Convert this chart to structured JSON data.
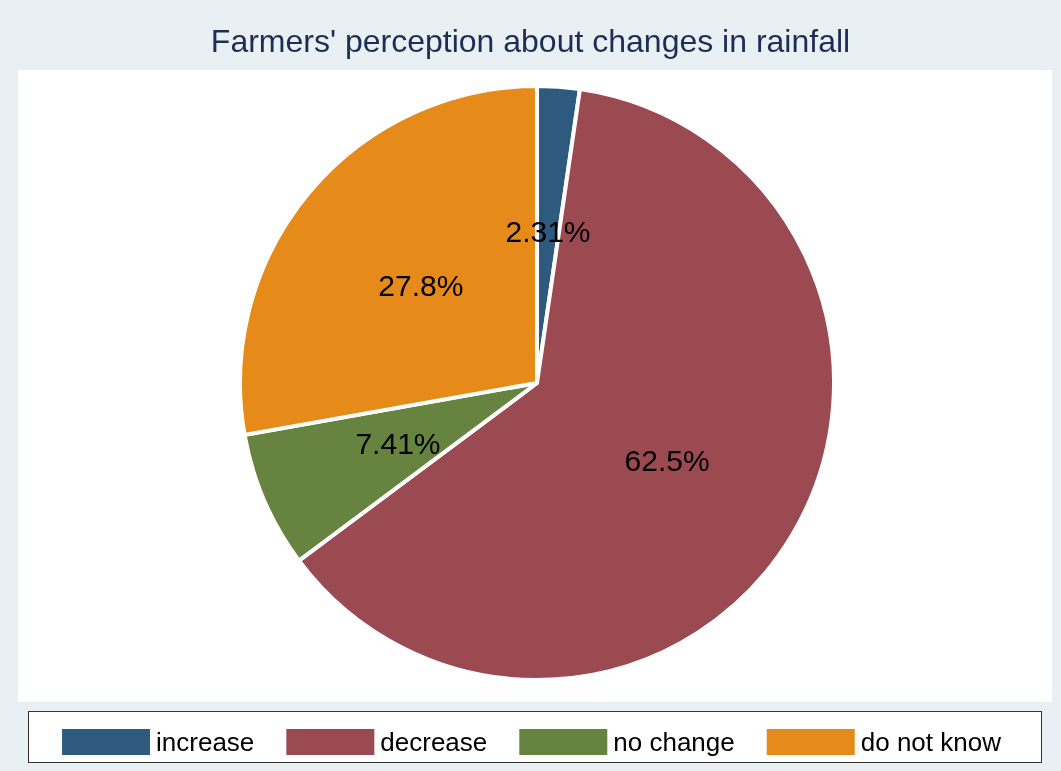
{
  "chart_data": {
    "type": "pie",
    "title": "Farmers' perception about changes in rainfall",
    "categories": [
      "increase",
      "decrease",
      "no change",
      "do not know"
    ],
    "values": [
      2.31,
      62.5,
      7.41,
      27.8
    ],
    "colors": [
      "#2e5a80",
      "#9a4a50",
      "#66833f",
      "#e68a1a"
    ],
    "value_labels": [
      "2.31%",
      "62.5%",
      "7.41%",
      "27.8%"
    ],
    "legend": "bottom"
  }
}
